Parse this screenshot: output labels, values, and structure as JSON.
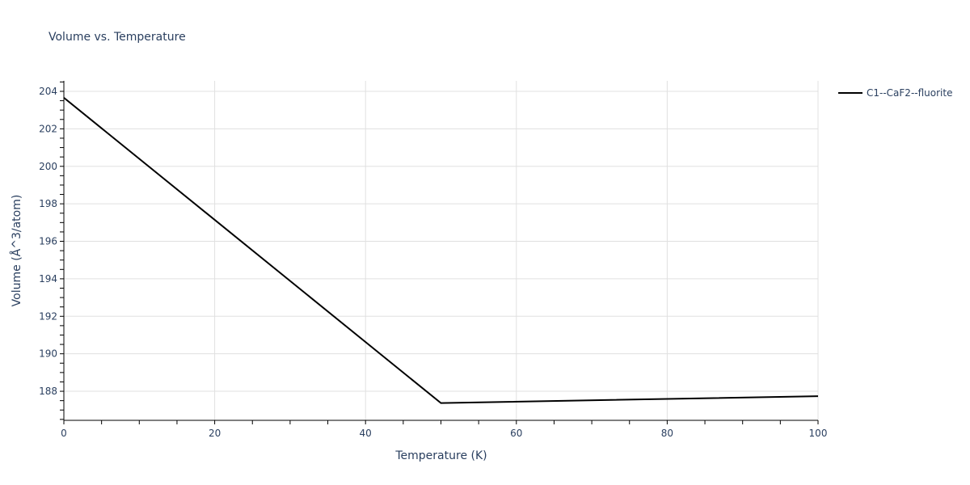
{
  "chart_data": {
    "type": "line",
    "title": "Volume vs. Temperature",
    "xlabel": "Temperature (K)",
    "ylabel": "Volume (Å^3/atom)",
    "xlim": [
      0,
      100
    ],
    "ylim": [
      186.45,
      204.56
    ],
    "xticks": [
      0,
      20,
      40,
      60,
      80,
      100
    ],
    "yticks": [
      188,
      190,
      192,
      194,
      196,
      198,
      200,
      202,
      204
    ],
    "grid": true,
    "legend_position": "top-right",
    "series": [
      {
        "name": "C1--CaF2--fluorite",
        "color": "#000000",
        "x": [
          0,
          50,
          100
        ],
        "y": [
          203.66,
          187.37,
          187.74
        ]
      }
    ]
  }
}
